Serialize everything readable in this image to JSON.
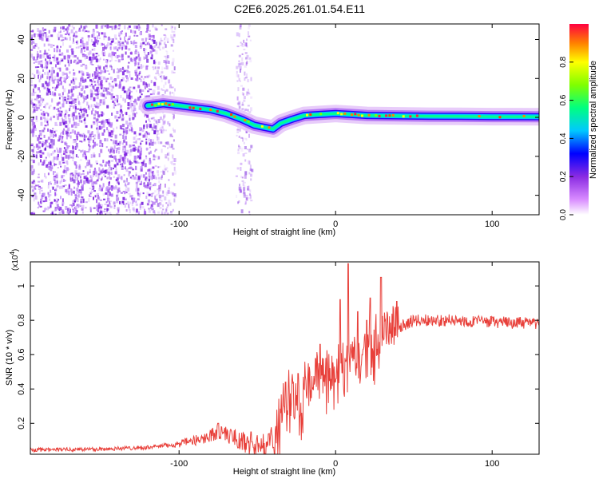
{
  "title": "C2E6.2025.261.01.54.E11",
  "chart_data": [
    {
      "type": "heatmap",
      "xlabel": "Height of straight line (km)",
      "ylabel": "Frequency (Hz)",
      "xlim": [
        -195,
        130
      ],
      "ylim": [
        -50,
        48
      ],
      "xticks": [
        -100,
        0,
        100
      ],
      "xtick_labels": [
        "-100",
        "0",
        "100"
      ],
      "yticks": [
        -40,
        -20,
        0,
        20,
        40
      ],
      "ytick_labels": [
        "-40",
        "-20",
        "0",
        "20",
        "40"
      ],
      "colorbar": {
        "label": "Normalized spectral amplitude",
        "range": [
          0,
          1
        ],
        "ticks": [
          0.0,
          0.2,
          0.4,
          0.6,
          0.8
        ],
        "tick_labels": [
          "0.0",
          "0.2",
          "0.4",
          "0.6",
          "0.8"
        ]
      },
      "ridge_frequency": [
        [
          -120,
          6
        ],
        [
          -110,
          7
        ],
        [
          -100,
          6
        ],
        [
          -90,
          5
        ],
        [
          -80,
          4
        ],
        [
          -70,
          2
        ],
        [
          -60,
          -1
        ],
        [
          -52,
          -4
        ],
        [
          -46,
          -5
        ],
        [
          -40,
          -6
        ],
        [
          -35,
          -3
        ],
        [
          -28,
          -1
        ],
        [
          -20,
          1
        ],
        [
          -10,
          1.5
        ],
        [
          0,
          2
        ],
        [
          10,
          1.5
        ],
        [
          20,
          1
        ],
        [
          40,
          0.8
        ],
        [
          60,
          0.6
        ],
        [
          80,
          0.5
        ],
        [
          100,
          0.4
        ],
        [
          130,
          0.3
        ]
      ]
    },
    {
      "type": "line",
      "xlabel": "Height of straight line (km)",
      "ylabel": "SNR (10 * v/v)",
      "y_multiplier_label": "(x10",
      "y_multiplier_exp": "4",
      "y_multiplier_close": ")",
      "xlim": [
        -195,
        130
      ],
      "ylim": [
        0.02,
        1.14
      ],
      "xticks": [
        -100,
        0,
        100
      ],
      "xtick_labels": [
        "-100",
        "0",
        "100"
      ],
      "yticks": [
        0.2,
        0.4,
        0.6,
        0.8,
        1.0
      ],
      "ytick_labels": [
        "0.2",
        "0.4",
        "0.6",
        "0.8",
        "1"
      ],
      "series": [
        {
          "name": "SNR",
          "color": "#e8403a",
          "envelope": [
            [
              -195,
              0.045
            ],
            [
              -150,
              0.05
            ],
            [
              -120,
              0.06
            ],
            [
              -100,
              0.08
            ],
            [
              -85,
              0.11
            ],
            [
              -75,
              0.15
            ],
            [
              -65,
              0.12
            ],
            [
              -55,
              0.07
            ],
            [
              -45,
              0.07
            ],
            [
              -38,
              0.15
            ],
            [
              -34,
              0.3
            ],
            [
              -30,
              0.38
            ],
            [
              -25,
              0.35
            ],
            [
              -20,
              0.42
            ],
            [
              -15,
              0.48
            ],
            [
              -10,
              0.53
            ],
            [
              -5,
              0.5
            ],
            [
              0,
              0.56
            ],
            [
              5,
              0.6
            ],
            [
              10,
              0.68
            ],
            [
              15,
              0.65
            ],
            [
              20,
              0.68
            ],
            [
              25,
              0.7
            ],
            [
              30,
              0.72
            ],
            [
              40,
              0.76
            ],
            [
              50,
              0.8
            ],
            [
              70,
              0.8
            ],
            [
              100,
              0.79
            ],
            [
              130,
              0.78
            ]
          ],
          "peaks": [
            [
              -75,
              0.2
            ],
            [
              -54,
              0.15
            ],
            [
              -32,
              0.44
            ],
            [
              -24,
              0.49
            ],
            [
              -10,
              0.66
            ],
            [
              8,
              1.13
            ],
            [
              3,
              0.92
            ],
            [
              14,
              0.85
            ],
            [
              22,
              0.93
            ],
            [
              29,
              1.05
            ],
            [
              39,
              0.91
            ],
            [
              20,
              0.8
            ]
          ]
        }
      ]
    }
  ]
}
